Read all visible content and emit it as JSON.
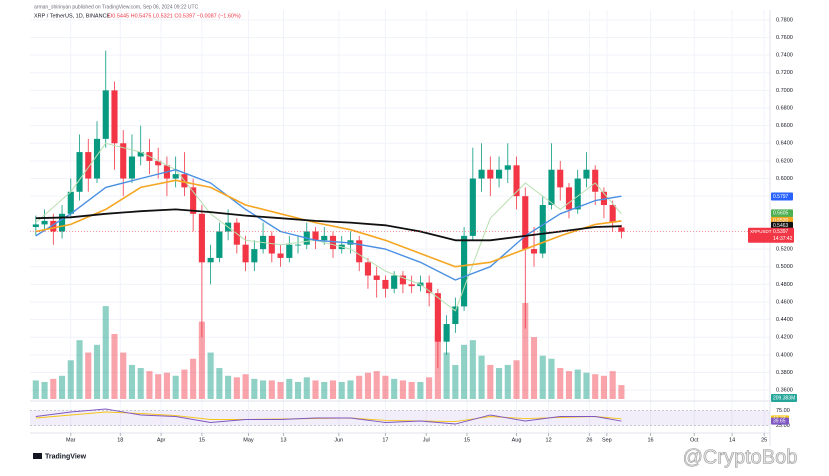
{
  "header": {
    "author": "arman_shirinyan published on TradingView.com, Sep 06, 2024 09:22 UTC",
    "symbol": "XRP / TetherUS, 1D, BINANCE",
    "ohlc": "O0.5445 H0.5475 L0.5321 C0.5397 −0.0087 (−1.60%)"
  },
  "watermark": "@CryptoBob",
  "logo": "TradingView",
  "chart_data": [
    {
      "type": "candlestick",
      "up_color": "#089981",
      "down_color": "#f23645",
      "x": [
        "2024-02-18",
        "2024-02-21",
        "2024-02-24",
        "2024-02-27",
        "2024-03-01",
        "2024-03-04",
        "2024-03-07",
        "2024-03-10",
        "2024-03-13",
        "2024-03-16",
        "2024-03-19",
        "2024-03-22",
        "2024-03-25",
        "2024-03-28",
        "2024-03-31",
        "2024-04-03",
        "2024-04-06",
        "2024-04-09",
        "2024-04-12",
        "2024-04-15",
        "2024-04-18",
        "2024-04-21",
        "2024-04-24",
        "2024-04-27",
        "2024-04-30",
        "2024-05-03",
        "2024-05-06",
        "2024-05-09",
        "2024-05-12",
        "2024-05-15",
        "2024-05-18",
        "2024-05-21",
        "2024-05-24",
        "2024-05-27",
        "2024-05-30",
        "2024-06-02",
        "2024-06-05",
        "2024-06-08",
        "2024-06-11",
        "2024-06-14",
        "2024-06-17",
        "2024-06-20",
        "2024-06-23",
        "2024-06-26",
        "2024-06-29",
        "2024-07-02",
        "2024-07-05",
        "2024-07-08",
        "2024-07-11",
        "2024-07-14",
        "2024-07-17",
        "2024-07-20",
        "2024-07-23",
        "2024-07-26",
        "2024-07-29",
        "2024-08-01",
        "2024-08-04",
        "2024-08-07",
        "2024-08-10",
        "2024-08-13",
        "2024-08-16",
        "2024-08-19",
        "2024-08-22",
        "2024-08-25",
        "2024-08-28",
        "2024-08-31",
        "2024-09-03",
        "2024-09-06"
      ],
      "open": [
        0.545,
        0.548,
        0.552,
        0.54,
        0.56,
        0.585,
        0.63,
        0.6,
        0.645,
        0.7,
        0.64,
        0.6,
        0.625,
        0.63,
        0.62,
        0.615,
        0.6,
        0.605,
        0.59,
        0.56,
        0.505,
        0.51,
        0.54,
        0.55,
        0.525,
        0.505,
        0.52,
        0.535,
        0.515,
        0.51,
        0.525,
        0.525,
        0.54,
        0.53,
        0.535,
        0.52,
        0.525,
        0.53,
        0.505,
        0.49,
        0.485,
        0.475,
        0.49,
        0.48,
        0.478,
        0.482,
        0.47,
        0.415,
        0.435,
        0.455,
        0.535,
        0.6,
        0.61,
        0.6,
        0.61,
        0.615,
        0.58,
        0.52,
        0.515,
        0.57,
        0.61,
        0.59,
        0.565,
        0.6,
        0.61,
        0.585,
        0.57,
        0.5445
      ],
      "high": [
        0.558,
        0.565,
        0.56,
        0.57,
        0.6,
        0.65,
        0.645,
        0.665,
        0.745,
        0.71,
        0.655,
        0.65,
        0.66,
        0.645,
        0.635,
        0.625,
        0.625,
        0.63,
        0.6,
        0.57,
        0.525,
        0.55,
        0.565,
        0.555,
        0.535,
        0.53,
        0.55,
        0.54,
        0.525,
        0.535,
        0.535,
        0.55,
        0.545,
        0.545,
        0.54,
        0.535,
        0.54,
        0.535,
        0.51,
        0.5,
        0.49,
        0.495,
        0.495,
        0.49,
        0.49,
        0.49,
        0.475,
        0.445,
        0.465,
        0.545,
        0.635,
        0.64,
        0.625,
        0.625,
        0.64,
        0.625,
        0.59,
        0.545,
        0.58,
        0.64,
        0.62,
        0.595,
        0.61,
        0.63,
        0.615,
        0.59,
        0.575,
        0.5475
      ],
      "low": [
        0.535,
        0.54,
        0.525,
        0.532,
        0.555,
        0.575,
        0.585,
        0.595,
        0.635,
        0.61,
        0.58,
        0.595,
        0.615,
        0.605,
        0.6,
        0.58,
        0.59,
        0.58,
        0.54,
        0.42,
        0.48,
        0.505,
        0.53,
        0.515,
        0.495,
        0.495,
        0.515,
        0.505,
        0.5,
        0.505,
        0.515,
        0.52,
        0.52,
        0.525,
        0.51,
        0.515,
        0.515,
        0.495,
        0.475,
        0.465,
        0.465,
        0.47,
        0.47,
        0.47,
        0.472,
        0.455,
        0.385,
        0.4,
        0.425,
        0.45,
        0.53,
        0.585,
        0.58,
        0.59,
        0.595,
        0.565,
        0.43,
        0.5,
        0.51,
        0.565,
        0.575,
        0.555,
        0.56,
        0.59,
        0.57,
        0.555,
        0.54,
        0.5321
      ],
      "close": [
        0.548,
        0.552,
        0.54,
        0.56,
        0.585,
        0.63,
        0.6,
        0.645,
        0.7,
        0.64,
        0.6,
        0.625,
        0.63,
        0.62,
        0.615,
        0.6,
        0.605,
        0.59,
        0.56,
        0.505,
        0.51,
        0.54,
        0.55,
        0.525,
        0.505,
        0.52,
        0.535,
        0.515,
        0.51,
        0.525,
        0.525,
        0.54,
        0.53,
        0.535,
        0.52,
        0.525,
        0.53,
        0.505,
        0.49,
        0.485,
        0.475,
        0.49,
        0.48,
        0.478,
        0.482,
        0.47,
        0.415,
        0.435,
        0.455,
        0.535,
        0.6,
        0.61,
        0.6,
        0.61,
        0.615,
        0.58,
        0.52,
        0.515,
        0.57,
        0.61,
        0.59,
        0.565,
        0.6,
        0.61,
        0.585,
        0.57,
        0.55,
        0.5397
      ],
      "volume": [
        120,
        110,
        130,
        150,
        250,
        380,
        300,
        350,
        600,
        420,
        300,
        220,
        200,
        180,
        160,
        170,
        150,
        190,
        260,
        500,
        300,
        200,
        150,
        140,
        160,
        130,
        120,
        120,
        110,
        130,
        110,
        140,
        120,
        110,
        120,
        110,
        120,
        150,
        170,
        180,
        150,
        130,
        120,
        110,
        110,
        140,
        420,
        300,
        220,
        350,
        380,
        280,
        220,
        200,
        220,
        250,
        620,
        400,
        280,
        260,
        200,
        180,
        190,
        170,
        160,
        150,
        180,
        90
      ],
      "volume_tag": "209.383M",
      "last_tag": "XRPUSDT",
      "countdown": "14:37:42",
      "xlim": [
        "2024-02-16",
        "2024-10-27"
      ],
      "xticks": [
        {
          "value": "2024-03-01",
          "label": "Mar"
        },
        {
          "value": "2024-03-18",
          "label": "18"
        },
        {
          "value": "2024-04-01",
          "label": "Apr"
        },
        {
          "value": "2024-04-15",
          "label": "15"
        },
        {
          "value": "2024-05-01",
          "label": "May"
        },
        {
          "value": "2024-05-13",
          "label": "13"
        },
        {
          "value": "2024-06-01",
          "label": "Jun"
        },
        {
          "value": "2024-06-17",
          "label": "17"
        },
        {
          "value": "2024-07-01",
          "label": "Jul"
        },
        {
          "value": "2024-07-15",
          "label": "15"
        },
        {
          "value": "2024-08-01",
          "label": "Aug"
        },
        {
          "value": "2024-08-12",
          "label": "12"
        },
        {
          "value": "2024-08-26",
          "label": "26"
        },
        {
          "value": "2024-09-01",
          "label": "Sep"
        },
        {
          "value": "2024-09-16",
          "label": "16"
        },
        {
          "value": "2024-10-01",
          "label": "Oct"
        },
        {
          "value": "2024-10-14",
          "label": "14"
        },
        {
          "value": "2024-10-25",
          "label": "25"
        }
      ],
      "ylim": [
        0.35,
        0.79
      ],
      "yticks": [
        {
          "value": 0.36,
          "label": "0.3600"
        },
        {
          "value": 0.38,
          "label": "0.3800"
        },
        {
          "value": 0.4,
          "label": "0.4000"
        },
        {
          "value": 0.42,
          "label": "0.4200"
        },
        {
          "value": 0.44,
          "label": "0.4400"
        },
        {
          "value": 0.46,
          "label": "0.4600"
        },
        {
          "value": 0.48,
          "label": "0.4800"
        },
        {
          "value": 0.5,
          "label": "0.5000"
        },
        {
          "value": 0.52,
          "label": "0.5200"
        },
        {
          "value": 0.58,
          "label": "0.5800"
        },
        {
          "value": 0.6,
          "label": "0.6000"
        },
        {
          "value": 0.62,
          "label": "0.6200"
        },
        {
          "value": 0.64,
          "label": "0.6400"
        },
        {
          "value": 0.66,
          "label": "0.6600"
        },
        {
          "value": 0.68,
          "label": "0.6800"
        },
        {
          "value": 0.7,
          "label": "0.7000"
        },
        {
          "value": 0.72,
          "label": "0.7200"
        },
        {
          "value": 0.74,
          "label": "0.7400"
        },
        {
          "value": 0.76,
          "label": "0.7600"
        },
        {
          "value": 0.78,
          "label": "0.7800"
        }
      ],
      "grid": true,
      "series": [
        {
          "color": "#b7dfb0",
          "width": 1,
          "x": [
            "2024-02-18",
            "2024-03-01",
            "2024-03-13",
            "2024-03-25",
            "2024-04-06",
            "2024-04-18",
            "2024-04-30",
            "2024-05-12",
            "2024-05-24",
            "2024-06-05",
            "2024-06-17",
            "2024-06-29",
            "2024-07-11",
            "2024-07-23",
            "2024-08-04",
            "2024-08-16",
            "2024-08-28",
            "2024-09-06"
          ],
          "values": [
            0.55,
            0.585,
            0.64,
            0.63,
            0.61,
            0.56,
            0.53,
            0.525,
            0.53,
            0.52,
            0.495,
            0.48,
            0.45,
            0.555,
            0.595,
            0.565,
            0.595,
            0.56
          ],
          "last": {
            "value": 0.5605,
            "label": "0.5605"
          },
          "tag_color": "#4caf50"
        },
        {
          "color": "#4a90e2",
          "width": 1.4,
          "x": [
            "2024-02-18",
            "2024-03-01",
            "2024-03-13",
            "2024-03-25",
            "2024-04-06",
            "2024-04-18",
            "2024-04-30",
            "2024-05-12",
            "2024-05-24",
            "2024-06-05",
            "2024-06-17",
            "2024-06-29",
            "2024-07-11",
            "2024-07-23",
            "2024-08-04",
            "2024-08-16",
            "2024-08-28",
            "2024-09-06"
          ],
          "values": [
            0.535,
            0.56,
            0.59,
            0.6,
            0.61,
            0.595,
            0.565,
            0.54,
            0.53,
            0.527,
            0.52,
            0.505,
            0.485,
            0.5,
            0.535,
            0.56,
            0.575,
            0.58
          ],
          "last": {
            "value": 0.5797,
            "label": "0.5797"
          },
          "tag_color": "#2962ff"
        },
        {
          "color": "#f5a623",
          "width": 1.6,
          "x": [
            "2024-02-18",
            "2024-03-01",
            "2024-03-13",
            "2024-03-25",
            "2024-04-06",
            "2024-04-18",
            "2024-04-30",
            "2024-05-12",
            "2024-05-24",
            "2024-06-05",
            "2024-06-17",
            "2024-06-29",
            "2024-07-11",
            "2024-07-23",
            "2024-08-04",
            "2024-08-16",
            "2024-08-28",
            "2024-09-06"
          ],
          "values": [
            0.54,
            0.548,
            0.565,
            0.59,
            0.598,
            0.59,
            0.57,
            0.56,
            0.55,
            0.542,
            0.53,
            0.515,
            0.5,
            0.505,
            0.52,
            0.535,
            0.548,
            0.552
          ],
          "last": {
            "value": 0.552,
            "label": "0.5520"
          },
          "tag_color": "#f5a623"
        },
        {
          "color": "#111111",
          "width": 1.8,
          "x": [
            "2024-02-18",
            "2024-03-01",
            "2024-03-13",
            "2024-03-25",
            "2024-04-06",
            "2024-04-18",
            "2024-04-30",
            "2024-05-12",
            "2024-05-24",
            "2024-06-05",
            "2024-06-17",
            "2024-06-29",
            "2024-07-11",
            "2024-07-23",
            "2024-08-04",
            "2024-08-16",
            "2024-08-28",
            "2024-09-06"
          ],
          "values": [
            0.555,
            0.556,
            0.56,
            0.563,
            0.565,
            0.562,
            0.558,
            0.555,
            0.552,
            0.55,
            0.547,
            0.54,
            0.53,
            0.53,
            0.535,
            0.54,
            0.545,
            0.546
          ],
          "last": {
            "value": 0.5463,
            "label": "0.5463"
          },
          "tag_color": "#111111"
        }
      ]
    },
    {
      "type": "line",
      "xlim": [
        "2024-02-16",
        "2024-10-27"
      ],
      "ylim": [
        0,
        100
      ],
      "yticks": [
        {
          "value": 75,
          "label": "75.00"
        },
        {
          "value": 25,
          "label": "25.00"
        }
      ],
      "series": [
        {
          "color": "#f5c518",
          "x": [
            "2024-02-18",
            "2024-03-01",
            "2024-03-13",
            "2024-03-25",
            "2024-04-06",
            "2024-04-18",
            "2024-04-30",
            "2024-05-12",
            "2024-05-24",
            "2024-06-05",
            "2024-06-17",
            "2024-06-29",
            "2024-07-11",
            "2024-07-23",
            "2024-08-04",
            "2024-08-16",
            "2024-08-28",
            "2024-09-06"
          ],
          "values": [
            50,
            60,
            70,
            65,
            58,
            45,
            45,
            47,
            48,
            50,
            42,
            40,
            38,
            55,
            48,
            52,
            55,
            47.27
          ]
        },
        {
          "color": "#7e57c2",
          "x": [
            "2024-02-18",
            "2024-03-01",
            "2024-03-13",
            "2024-03-25",
            "2024-04-06",
            "2024-04-18",
            "2024-04-30",
            "2024-05-12",
            "2024-05-24",
            "2024-06-05",
            "2024-06-17",
            "2024-06-29",
            "2024-07-11",
            "2024-07-23",
            "2024-08-04",
            "2024-08-16",
            "2024-08-28",
            "2024-09-06"
          ],
          "values": [
            55,
            70,
            80,
            60,
            55,
            35,
            45,
            45,
            50,
            50,
            35,
            40,
            30,
            60,
            40,
            55,
            55,
            39.65
          ]
        }
      ]
    }
  ]
}
